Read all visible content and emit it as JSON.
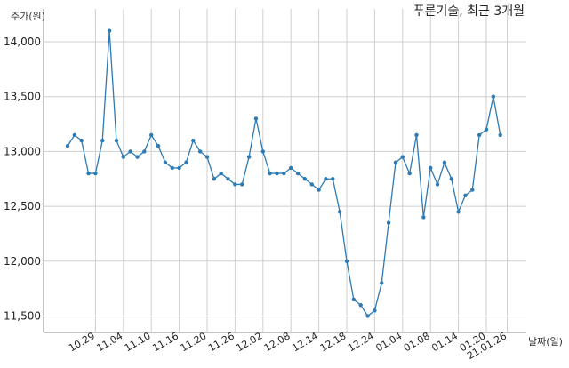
{
  "chart_data": {
    "type": "line",
    "title": "푸른기술, 최근 3개월",
    "ylabel": "주가(원)",
    "xlabel": "날짜(일)",
    "ylim": [
      11350,
      14300
    ],
    "yticks": [
      11500,
      12000,
      12500,
      13000,
      13500,
      14000
    ],
    "ytick_labels": [
      "11,500",
      "12,000",
      "12,500",
      "13,000",
      "13,500",
      "14,000"
    ],
    "grid": true,
    "line_color": "#2e7ab3",
    "xtick_labels": [
      {
        "label": "10.29",
        "index": 4
      },
      {
        "label": "11.04",
        "index": 8
      },
      {
        "label": "11.10",
        "index": 12
      },
      {
        "label": "11.16",
        "index": 16
      },
      {
        "label": "11.20",
        "index": 20
      },
      {
        "label": "11.26",
        "index": 24
      },
      {
        "label": "12.02",
        "index": 28
      },
      {
        "label": "12.08",
        "index": 32
      },
      {
        "label": "12.14",
        "index": 36
      },
      {
        "label": "12.18",
        "index": 40
      },
      {
        "label": "12.24",
        "index": 44
      },
      {
        "label": "01.04",
        "index": 48
      },
      {
        "label": "01.08",
        "index": 52
      },
      {
        "label": "01.14",
        "index": 56
      },
      {
        "label": "01.20",
        "index": 60
      },
      {
        "label": "21.01.26",
        "index": 63
      }
    ],
    "values": [
      13050,
      13150,
      13100,
      12800,
      12800,
      13100,
      14100,
      13100,
      12950,
      13000,
      12950,
      13000,
      13150,
      13050,
      12900,
      12850,
      12850,
      12900,
      13100,
      13000,
      12950,
      12750,
      12800,
      12750,
      12700,
      12700,
      12950,
      13300,
      13000,
      12800,
      12800,
      12800,
      12850,
      12800,
      12750,
      12700,
      12650,
      12750,
      12750,
      12450,
      12000,
      11650,
      11600,
      11500,
      11550,
      11800,
      12350,
      12900,
      12950,
      12800,
      13150,
      12400,
      12850,
      12700,
      12900,
      12750,
      12450,
      12600,
      12650,
      13150,
      13200,
      13500,
      13150
    ]
  }
}
